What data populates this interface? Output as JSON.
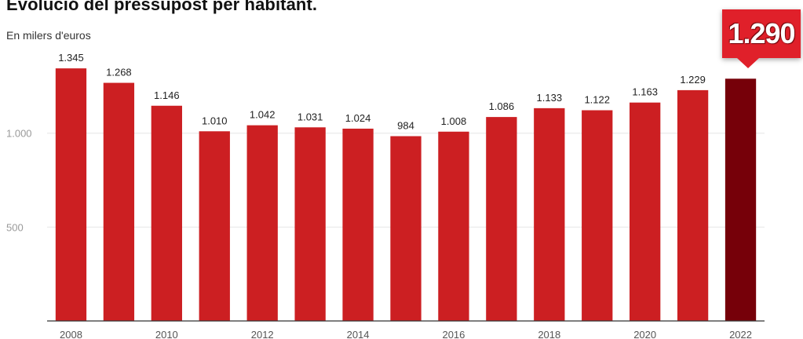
{
  "title": "Evolució del pressupost per habitant.",
  "subtitle": "En milers d'euros",
  "callout": {
    "text": "1.290",
    "color": "#e0202a"
  },
  "colors": {
    "bar": "#cc1f22",
    "highlight": "#760009",
    "grid": "#e6e6e6",
    "baseline": "#333333"
  },
  "chart_data": {
    "type": "bar",
    "title": "Evolució del pressupost per habitant.",
    "subtitle": "En milers d'euros",
    "categories": [
      "2008",
      "2009",
      "2010",
      "2011",
      "2012",
      "2013",
      "2014",
      "2015",
      "2016",
      "2017",
      "2018",
      "2019",
      "2020",
      "2021",
      "2022"
    ],
    "values": [
      1345,
      1268,
      1146,
      1010,
      1042,
      1031,
      1024,
      984,
      1008,
      1086,
      1133,
      1122,
      1163,
      1229,
      1290
    ],
    "value_labels": [
      "1.345",
      "1.268",
      "1.146",
      "1.010",
      "1.042",
      "1.031",
      "1.024",
      "984",
      "1.008",
      "1.086",
      "1.133",
      "1.122",
      "1.163",
      "1.229",
      ""
    ],
    "x_tick_labels": [
      "2008",
      "",
      "2010",
      "",
      "2012",
      "",
      "2014",
      "",
      "2016",
      "",
      "2018",
      "",
      "2020",
      "",
      "2022"
    ],
    "y_ticks": [
      500,
      1000
    ],
    "y_tick_labels": [
      "500",
      "1.000"
    ],
    "ylim": [
      0,
      1450
    ],
    "highlight_index": 14,
    "grid": true,
    "legend": "none"
  }
}
